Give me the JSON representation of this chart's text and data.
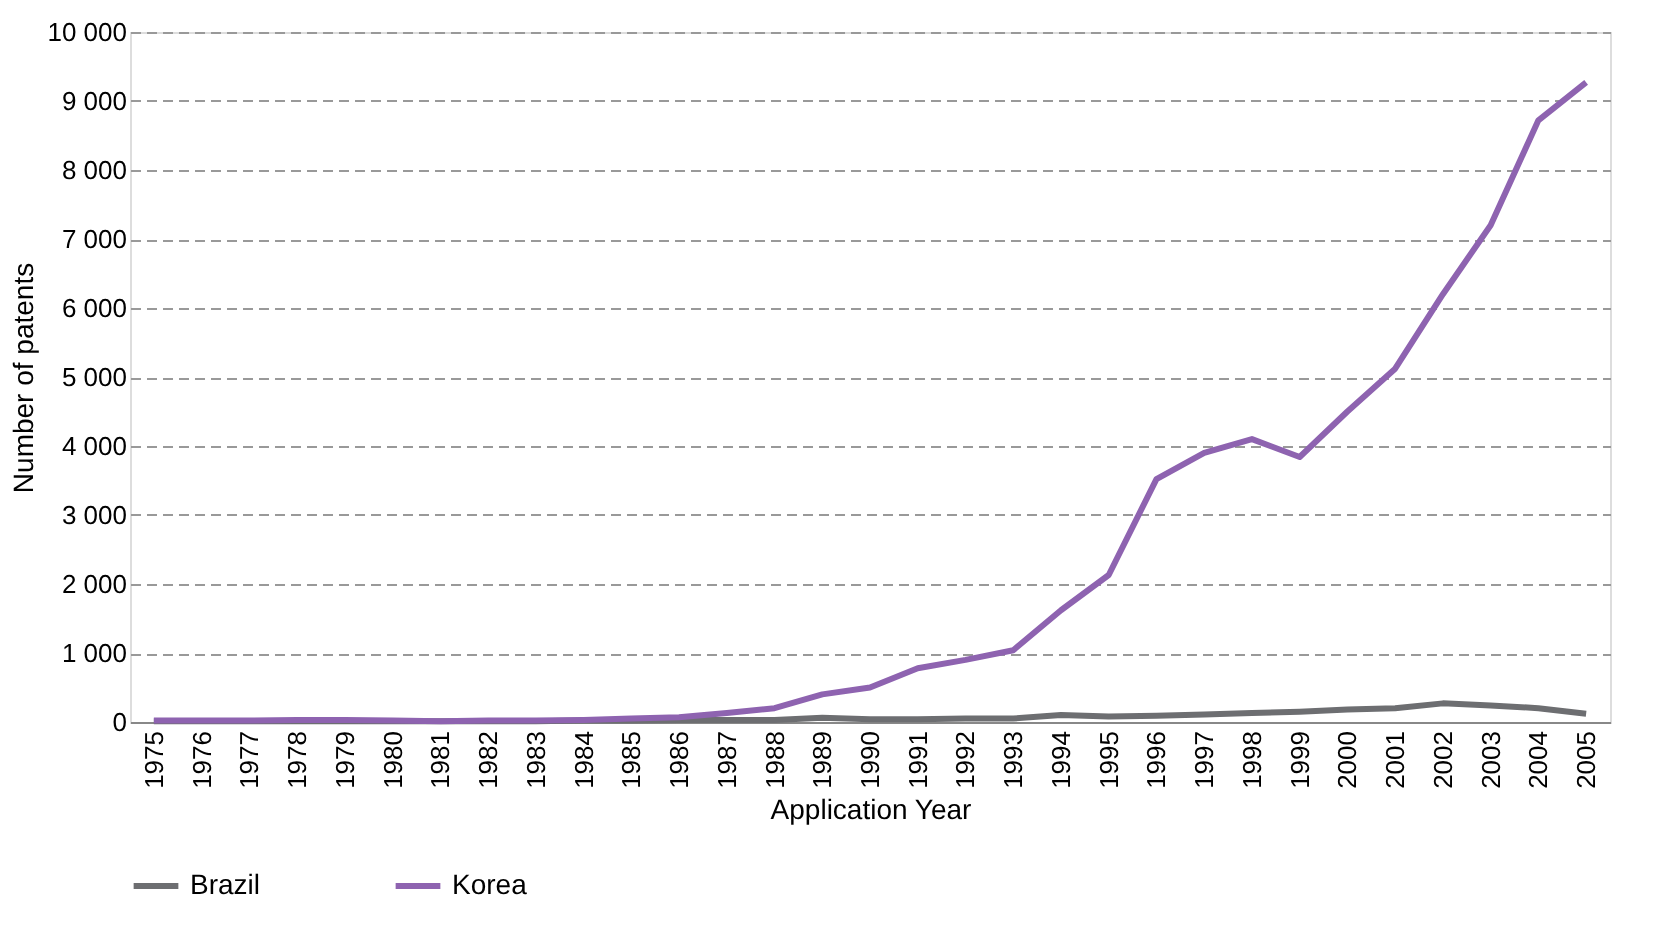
{
  "chart_data": {
    "type": "line",
    "xlabel": "Application Year",
    "ylabel": "Number of patents",
    "categories": [
      "1975",
      "1976",
      "1977",
      "1978",
      "1979",
      "1980",
      "1981",
      "1982",
      "1983",
      "1984",
      "1985",
      "1986",
      "1987",
      "1988",
      "1989",
      "1990",
      "1991",
      "1992",
      "1993",
      "1994",
      "1995",
      "1996",
      "1997",
      "1998",
      "1999",
      "2000",
      "2001",
      "2002",
      "2003",
      "2004",
      "2005"
    ],
    "series": [
      {
        "name": "Brazil",
        "color": "#6d6e71",
        "values": [
          10,
          10,
          10,
          10,
          10,
          10,
          10,
          10,
          10,
          20,
          20,
          30,
          30,
          30,
          60,
          40,
          40,
          50,
          50,
          100,
          80,
          90,
          110,
          130,
          150,
          180,
          200,
          270,
          240,
          200,
          120
        ]
      },
      {
        "name": "Korea",
        "color": "#8e63b0",
        "values": [
          20,
          20,
          20,
          30,
          30,
          20,
          10,
          20,
          20,
          30,
          50,
          70,
          130,
          200,
          400,
          500,
          780,
          900,
          1040,
          1620,
          2130,
          3520,
          3900,
          4100,
          3840,
          4500,
          5120,
          6200,
          7200,
          8720,
          9270
        ]
      }
    ],
    "ylim": [
      0,
      10000
    ],
    "yticks": [
      0,
      {
        "value": 1000,
        "label": "1 000"
      },
      {
        "value": 2000,
        "label": "2 000"
      },
      {
        "value": 3000,
        "label": "3 000"
      },
      {
        "value": 4000,
        "label": "4 000"
      },
      {
        "value": 5000,
        "label": "5 000"
      },
      {
        "value": 6000,
        "label": "6 000"
      },
      {
        "value": 7000,
        "label": "7 000"
      },
      {
        "value": 8000,
        "label": "8 000"
      },
      {
        "value": 9000,
        "label": "9 000"
      },
      {
        "value": 10000,
        "label": "10 000"
      }
    ],
    "grid": "y",
    "legend": "bottom",
    "marker": "none",
    "line_style": "solid"
  }
}
